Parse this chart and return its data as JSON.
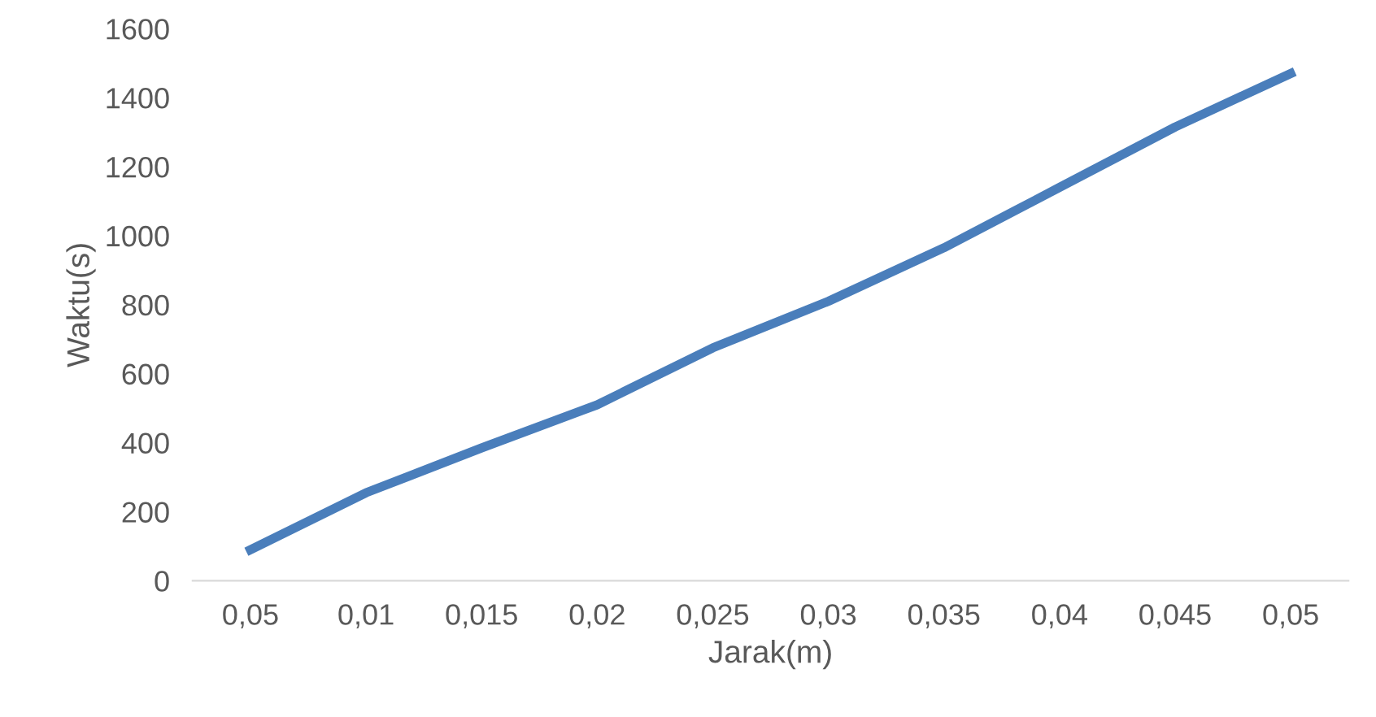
{
  "chart_data": {
    "type": "line",
    "xlabel": "Jarak(m)",
    "ylabel": "Waktu(s)",
    "categories": [
      "0,05",
      "0,01",
      "0,015",
      "0,02",
      "0,025",
      "0,03",
      "0,035",
      "0,04",
      "0,045",
      "0,05"
    ],
    "series": [
      {
        "color": "#4a7ebb",
        "values": [
          90,
          255,
          385,
          510,
          675,
          810,
          965,
          1140,
          1315,
          1470
        ]
      }
    ],
    "ylim": [
      0,
      1600
    ],
    "yticks": [
      0,
      200,
      400,
      600,
      800,
      1000,
      1200,
      1400,
      1600
    ],
    "line_style": "solid"
  }
}
